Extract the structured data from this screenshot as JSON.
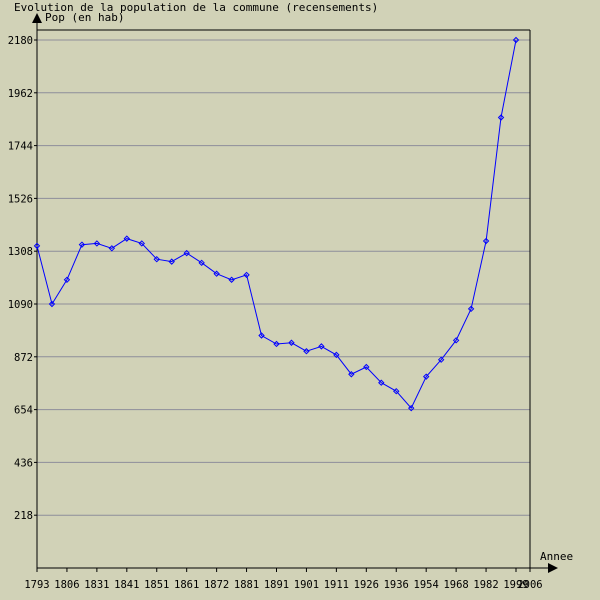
{
  "chart_data": {
    "type": "line",
    "title": "Evolution de la population de la commune (recensements)",
    "ylabel": "Pop (en hab)",
    "xlabel": "Annee",
    "ylim": [
      0,
      2180
    ],
    "yticks": [
      218,
      436,
      654,
      872,
      1090,
      1308,
      1526,
      1744,
      1962,
      2180
    ],
    "xticklabels": [
      "1793",
      "1806",
      "1831",
      "1841",
      "1851",
      "1861",
      "1872",
      "1881",
      "1891",
      "1901",
      "1911",
      "1926",
      "1936",
      "1954",
      "1968",
      "1982",
      "1999",
      "2006"
    ],
    "grid": true,
    "line_color": "#0000ff",
    "background": "#d1d2b7",
    "gridline_color": "#8e8e9a",
    "series": [
      {
        "x": [
          "1793",
          "1800",
          "1806",
          "1821",
          "1831",
          "1836",
          "1841",
          "1846",
          "1851",
          "1856",
          "1861",
          "1866",
          "1872",
          "1876",
          "1881",
          "1886",
          "1891",
          "1896",
          "1901",
          "1906",
          "1911",
          "1921",
          "1926",
          "1931",
          "1936",
          "1946",
          "1954",
          "1962",
          "1968",
          "1975",
          "1982",
          "1990",
          "1999"
        ],
        "values": [
          1330,
          1090,
          1190,
          1335,
          1340,
          1320,
          1360,
          1340,
          1275,
          1265,
          1300,
          1260,
          1215,
          1190,
          1210,
          960,
          925,
          930,
          895,
          915,
          880,
          800,
          830,
          765,
          730,
          660,
          790,
          860,
          940,
          1070,
          1350,
          1860,
          2180
        ]
      }
    ]
  }
}
